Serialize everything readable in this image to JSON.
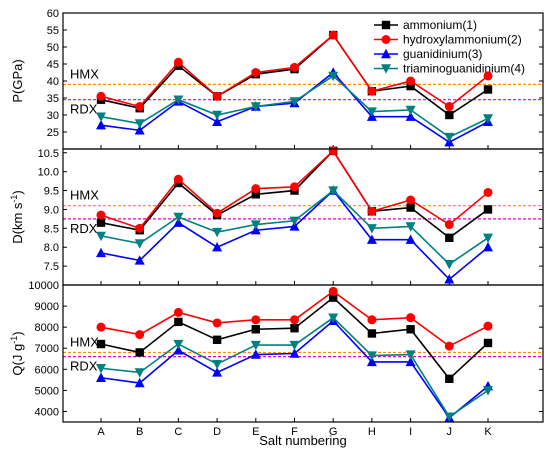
{
  "chart_data": {
    "type": "line",
    "x_label": "Salt numbering",
    "categories": [
      "A",
      "B",
      "C",
      "D",
      "E",
      "F",
      "G",
      "H",
      "I",
      "J",
      "K"
    ],
    "legend": {
      "placement": "top-right",
      "entries": [
        "ammonium(1)",
        "hydroxylammonium(2)",
        "guanidinium(3)",
        "triaminoguanidinium(4)"
      ]
    },
    "series_style": [
      {
        "color": "#000000",
        "marker": "square"
      },
      {
        "color": "#ff0000",
        "marker": "circle"
      },
      {
        "color": "#0000ff",
        "marker": "triangle-up"
      },
      {
        "color": "#008080",
        "marker": "triangle-down"
      }
    ],
    "panels": [
      {
        "ylabel": "P(GPa)",
        "ylim": [
          20,
          60
        ],
        "yticks": [
          20,
          25,
          30,
          35,
          40,
          45,
          50,
          55,
          60
        ],
        "tick_labels": [
          "",
          "25",
          "30",
          "35",
          "40",
          "45",
          "50",
          "55",
          "60"
        ],
        "references": [
          {
            "label": "HMX",
            "value": 39.0,
            "color": "#ff8c00"
          },
          {
            "label": "RDX",
            "value": 34.5,
            "color": "#e000e0"
          }
        ],
        "series": [
          {
            "name": "ammonium(1)",
            "values": [
              34.5,
              32.0,
              44.5,
              35.5,
              42.0,
              43.5,
              53.5,
              37.0,
              38.5,
              30.0,
              37.5
            ]
          },
          {
            "name": "hydroxylammonium(2)",
            "values": [
              35.5,
              32.5,
              45.5,
              35.5,
              42.5,
              44.0,
              53.5,
              37.0,
              40.0,
              32.5,
              41.5
            ]
          },
          {
            "name": "guanidinium(3)",
            "values": [
              27.0,
              25.5,
              34.0,
              28.0,
              32.5,
              33.5,
              42.5,
              29.5,
              29.5,
              22.0,
              28.0
            ]
          },
          {
            "name": "triaminoguanidinium(4)",
            "values": [
              29.5,
              27.5,
              34.5,
              30.0,
              32.5,
              34.0,
              41.5,
              31.0,
              31.5,
              23.5,
              29.0
            ]
          }
        ]
      },
      {
        "ylabel": "D(km s-1)",
        "ylim": [
          7.0,
          10.6
        ],
        "yticks": [
          7.0,
          7.5,
          8.0,
          8.5,
          9.0,
          9.5,
          10.0,
          10.5
        ],
        "tick_labels": [
          "",
          "7.5",
          "8.0",
          "8.5",
          "9.0",
          "9.5",
          "10.0",
          "10.5"
        ],
        "references": [
          {
            "label": "HMX",
            "value": 9.1,
            "color": "#ff8c00"
          },
          {
            "label": "RDX",
            "value": 8.75,
            "color": "#e000e0"
          }
        ],
        "series": [
          {
            "name": "ammonium(1)",
            "values": [
              8.65,
              8.45,
              9.7,
              8.85,
              9.4,
              9.5,
              10.55,
              8.95,
              9.05,
              8.25,
              9.0
            ]
          },
          {
            "name": "hydroxylammonium(2)",
            "values": [
              8.85,
              8.5,
              9.8,
              8.9,
              9.55,
              9.6,
              10.55,
              8.95,
              9.25,
              8.6,
              9.45
            ]
          },
          {
            "name": "guanidinium(3)",
            "values": [
              7.85,
              7.65,
              8.65,
              8.0,
              8.45,
              8.55,
              9.5,
              8.2,
              8.2,
              7.15,
              8.0
            ]
          },
          {
            "name": "triaminoguanidinium(4)",
            "values": [
              8.3,
              8.1,
              8.8,
              8.4,
              8.6,
              8.7,
              9.5,
              8.5,
              8.55,
              7.55,
              8.25
            ]
          }
        ]
      },
      {
        "ylabel": "Q(J g-1)",
        "ylim": [
          3500,
          10000
        ],
        "yticks": [
          4000,
          5000,
          6000,
          7000,
          8000,
          9000,
          10000
        ],
        "tick_labels": [
          "4000",
          "5000",
          "6000",
          "7000",
          "8000",
          "9000",
          "10000"
        ],
        "references": [
          {
            "label": "HMX",
            "value": 6800,
            "color": "#ff8c00"
          },
          {
            "label": "RDX",
            "value": 6600,
            "color": "#e000e0"
          }
        ],
        "series": [
          {
            "name": "ammonium(1)",
            "values": [
              7200,
              6800,
              8250,
              7400,
              7900,
              7950,
              9400,
              7700,
              7900,
              5550,
              7250
            ]
          },
          {
            "name": "hydroxylammonium(2)",
            "values": [
              8000,
              7650,
              8700,
              8200,
              8350,
              8350,
              9700,
              8350,
              8450,
              7100,
              8050
            ]
          },
          {
            "name": "guanidinium(3)",
            "values": [
              5600,
              5350,
              6900,
              5850,
              6700,
              6750,
              8300,
              6350,
              6350,
              3700,
              5200
            ]
          },
          {
            "name": "triaminoguanidinium(4)",
            "values": [
              6050,
              5850,
              7200,
              6250,
              7150,
              7150,
              8450,
              6650,
              6700,
              3750,
              5000
            ]
          }
        ]
      }
    ]
  }
}
